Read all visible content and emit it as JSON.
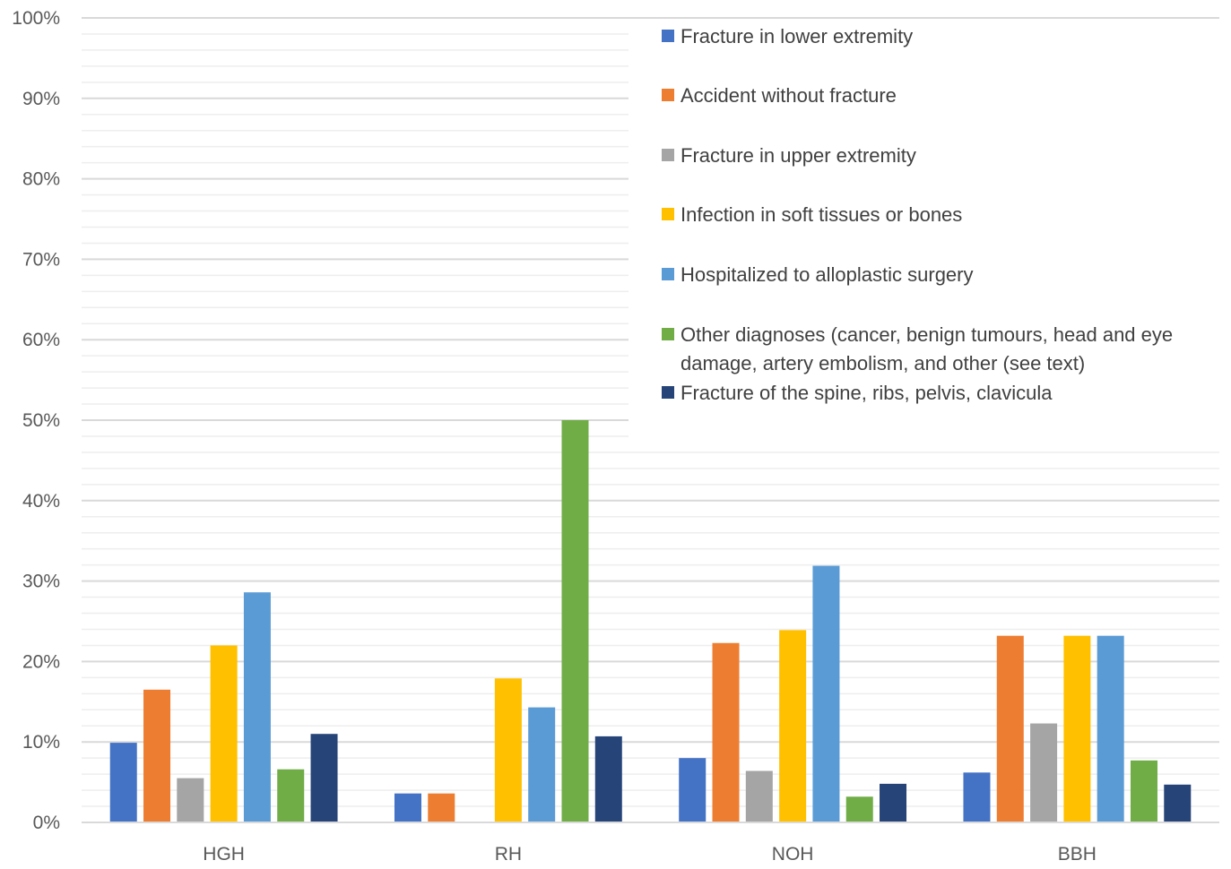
{
  "chart_data": {
    "type": "bar",
    "title": "",
    "xlabel": "",
    "ylabel": "",
    "categories": [
      "HGH",
      "RH",
      "NOH",
      "BBH"
    ],
    "ylim": [
      0,
      100
    ],
    "y_ticks": [
      "0%",
      "10%",
      "20%",
      "30%",
      "40%",
      "50%",
      "60%",
      "70%",
      "80%",
      "90%",
      "100%"
    ],
    "grid": true,
    "legend_position": "top-right",
    "series": [
      {
        "name": "Fracture in lower extremity",
        "color": "#4472C4",
        "values": [
          9.9,
          3.6,
          8.0,
          6.2
        ]
      },
      {
        "name": "Accident without fracture",
        "color": "#ED7D31",
        "values": [
          16.5,
          3.6,
          22.3,
          23.2
        ]
      },
      {
        "name": "Fracture in upper extremity",
        "color": "#A5A5A5",
        "values": [
          5.5,
          0,
          6.4,
          12.3
        ]
      },
      {
        "name": "Infection in soft tissues or bones",
        "color": "#FFC000",
        "values": [
          22.0,
          17.9,
          23.9,
          23.2
        ]
      },
      {
        "name": "Hospitalized to alloplastic surgery",
        "color": "#5B9BD5",
        "values": [
          28.6,
          14.3,
          31.9,
          23.2
        ]
      },
      {
        "name": "Other diagnoses (cancer, benign tumours, head and eye damage, artery embolism, and other (see text)",
        "legend_lines": [
          "Other diagnoses (cancer, benign tumours, head and eye",
          "damage, artery embolism, and other (see text)"
        ],
        "color": "#70AD47",
        "values": [
          6.6,
          50.0,
          3.2,
          7.7
        ]
      },
      {
        "name": "Fracture of the spine, ribs, pelvis, clavicula",
        "color": "#264478",
        "values": [
          11.0,
          10.7,
          4.8,
          4.7
        ]
      }
    ]
  }
}
